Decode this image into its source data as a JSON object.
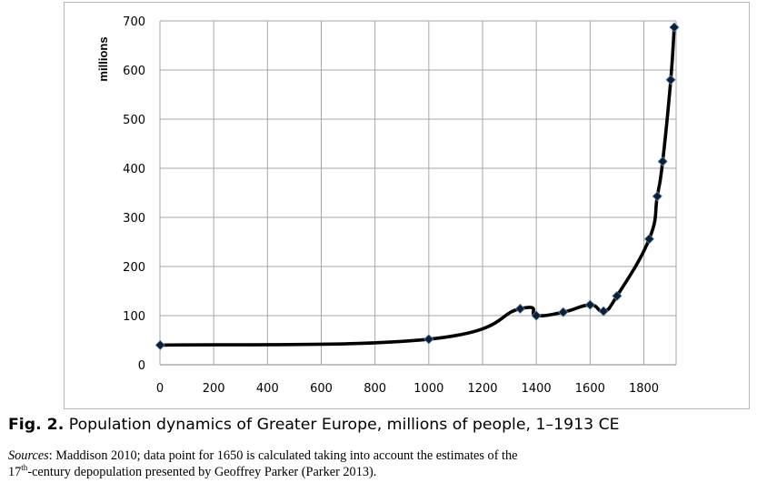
{
  "chart_data": {
    "type": "line",
    "title": "",
    "xlabel": "",
    "ylabel": "millions",
    "xlim": [
      0,
      1920
    ],
    "ylim": [
      0,
      700
    ],
    "x_ticks": [
      0,
      200,
      400,
      600,
      800,
      1000,
      1200,
      1400,
      1600,
      1800
    ],
    "y_ticks": [
      0,
      100,
      200,
      300,
      400,
      500,
      600,
      700
    ],
    "grid": true,
    "legend": "none",
    "series": [
      {
        "color": "#000000",
        "marker": "diamond",
        "smooth": true,
        "points": [
          {
            "x": 1,
            "y": 40
          },
          {
            "x": 1000,
            "y": 52
          },
          {
            "x": 1340,
            "y": 114
          },
          {
            "x": 1400,
            "y": 100
          },
          {
            "x": 1500,
            "y": 107
          },
          {
            "x": 1600,
            "y": 122
          },
          {
            "x": 1650,
            "y": 109
          },
          {
            "x": 1700,
            "y": 140
          },
          {
            "x": 1820,
            "y": 256
          },
          {
            "x": 1850,
            "y": 343
          },
          {
            "x": 1870,
            "y": 414
          },
          {
            "x": 1900,
            "y": 580
          },
          {
            "x": 1913,
            "y": 687
          }
        ]
      }
    ]
  },
  "caption": {
    "fig_label": "Fig. 2.",
    "fig_text": " Population dynamics of Greater Europe, millions of people, 1–1913 CE",
    "sources_label": "Sources",
    "sources_line1_rest": ": Maddison 2010; data point for 1650 is calculated taking into account the estimates of the",
    "sources_line2_num": "17",
    "sources_line2_sup": "th",
    "sources_line2_rest": "-century depopulation presented by Geoffrey Parker (Parker 2013)."
  }
}
